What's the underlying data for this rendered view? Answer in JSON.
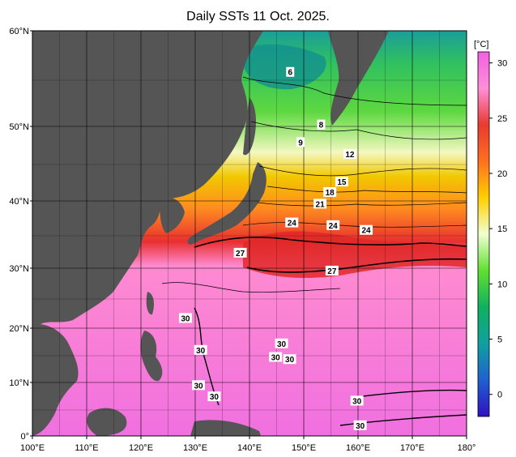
{
  "title": "Daily SSTs 11 Oct. 2025.",
  "colorbar": {
    "unit": "[°C]",
    "ticks": [
      30,
      25,
      20,
      15,
      10,
      5,
      0
    ],
    "stops": [
      "#f060e0",
      "#ff8fd8",
      "#e83a30",
      "#ff7020",
      "#ffd000",
      "#f0ffd0",
      "#60e030",
      "#10b060",
      "#10a0a0",
      "#2060d0",
      "#3010c0"
    ]
  },
  "axes": {
    "lon_labels": [
      "100°E",
      "110°E",
      "120°E",
      "130°E",
      "140°E",
      "150°E",
      "160°E",
      "170°E",
      "180°"
    ],
    "lat_labels": [
      "60°N",
      "50°N",
      "40°N",
      "30°N",
      "20°N",
      "10°N",
      "0°"
    ]
  },
  "contour_labels": [
    {
      "text": "6",
      "lon": 147.5,
      "lat": 55.7
    },
    {
      "text": "8",
      "lon": 153.2,
      "lat": 50.2
    },
    {
      "text": "9",
      "lon": 149.4,
      "lat": 47.9
    },
    {
      "text": "12",
      "lon": 158.5,
      "lat": 46.3
    },
    {
      "text": "15",
      "lon": 157.0,
      "lat": 42.6
    },
    {
      "text": "18",
      "lon": 154.8,
      "lat": 41.2
    },
    {
      "text": "21",
      "lon": 153.0,
      "lat": 39.6
    },
    {
      "text": "24",
      "lon": 147.8,
      "lat": 36.8
    },
    {
      "text": "24",
      "lon": 155.4,
      "lat": 36.4
    },
    {
      "text": "24",
      "lon": 161.5,
      "lat": 35.7
    },
    {
      "text": "27",
      "lon": 138.3,
      "lat": 32.3
    },
    {
      "text": "27",
      "lon": 155.2,
      "lat": 29.6
    },
    {
      "text": "30",
      "lon": 128.2,
      "lat": 21.7
    },
    {
      "text": "30",
      "lon": 131.0,
      "lat": 16.0
    },
    {
      "text": "30",
      "lon": 145.9,
      "lat": 17.2
    },
    {
      "text": "30",
      "lon": 144.8,
      "lat": 14.7
    },
    {
      "text": "30",
      "lon": 147.4,
      "lat": 14.3
    },
    {
      "text": "30",
      "lon": 130.6,
      "lat": 9.5
    },
    {
      "text": "30",
      "lon": 133.5,
      "lat": 7.4
    },
    {
      "text": "30",
      "lon": 159.8,
      "lat": 6.6
    },
    {
      "text": "30",
      "lon": 160.4,
      "lat": 2.0
    }
  ]
}
